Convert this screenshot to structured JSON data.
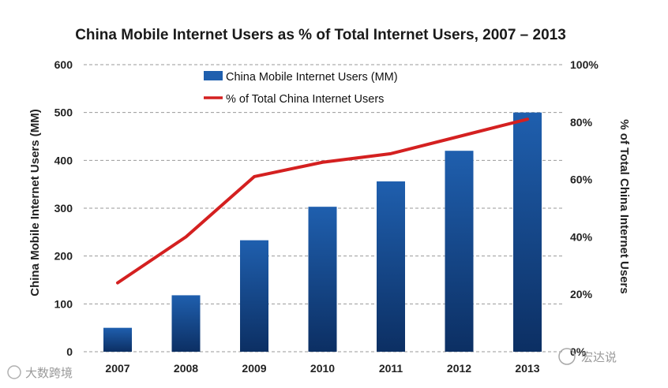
{
  "chart_data": {
    "type": "bar",
    "title": "China Mobile Internet Users as % of Total Internet Users, 2007 – 2013",
    "categories": [
      "2007",
      "2008",
      "2009",
      "2010",
      "2011",
      "2012",
      "2013"
    ],
    "series": [
      {
        "name": "China Mobile Internet Users (MM)",
        "type": "bar",
        "axis": "left",
        "values": [
          50,
          118,
          233,
          303,
          356,
          420,
          500
        ],
        "color": "#1f5fae"
      },
      {
        "name": "% of Total China Internet Users",
        "type": "line",
        "axis": "right",
        "values": [
          24,
          40,
          61,
          66,
          69,
          75,
          81
        ],
        "color": "#d42020"
      }
    ],
    "ylabel": "China Mobile Internet Users (MM)",
    "ylim": [
      0,
      600
    ],
    "yticks": [
      "0",
      "100",
      "200",
      "300",
      "400",
      "500",
      "600"
    ],
    "y2label": "% of Total China Internet Users",
    "y2lim": [
      0,
      100
    ],
    "y2ticks": [
      "0%",
      "20%",
      "40%",
      "60%",
      "80%",
      "100%"
    ],
    "grid": "horizontal dashed",
    "legend_position": "top-center"
  },
  "watermarks": {
    "left": "大数跨境",
    "right": "宏达说"
  }
}
